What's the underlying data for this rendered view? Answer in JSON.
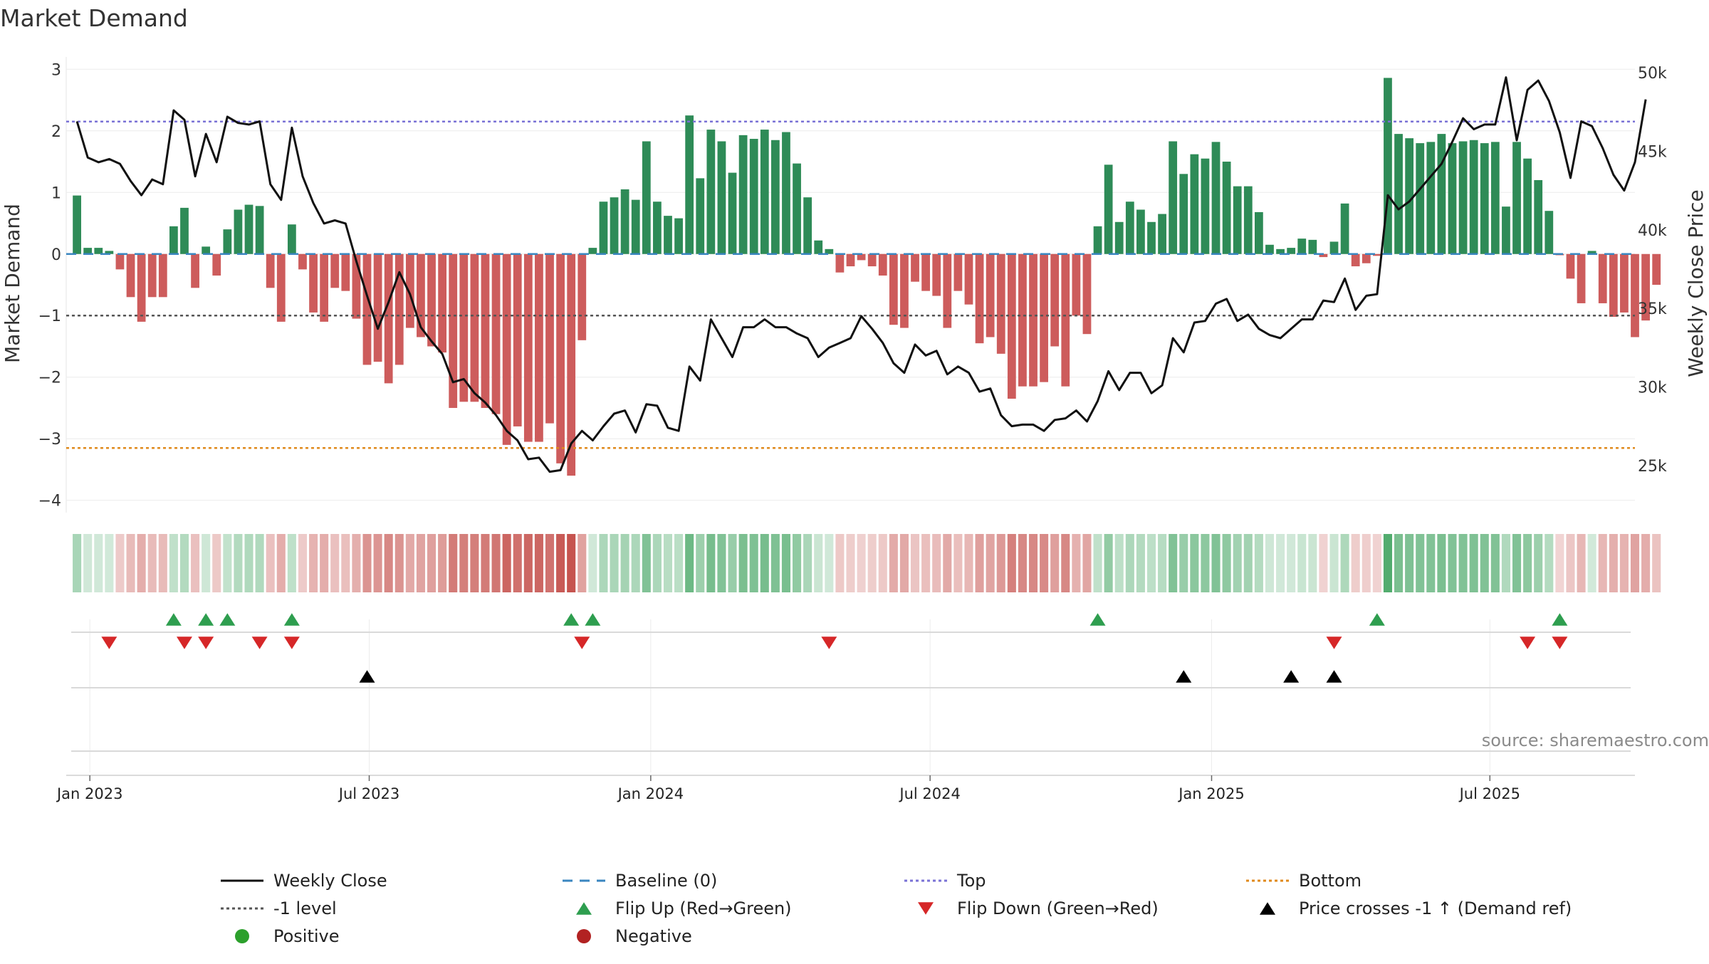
{
  "chart_data": {
    "type": "bar+line",
    "title": "Market Demand",
    "ylabel_left": "Market Demand",
    "ylabel_right": "Weekly Close Price",
    "ylim_left": [
      -4.2,
      3.2
    ],
    "ylim_right": [
      22000,
      51000
    ],
    "yticks_left": [
      -4,
      -3,
      -2,
      -1,
      0,
      1,
      2,
      3
    ],
    "yticks_left_labels": [
      "−4",
      "−3",
      "−2",
      "−1",
      "0",
      "1",
      "2",
      "3"
    ],
    "yticks_right": [
      25000,
      30000,
      35000,
      40000,
      45000,
      50000
    ],
    "yticks_right_labels": [
      "25k",
      "30k",
      "35k",
      "40k",
      "45k",
      "50k"
    ],
    "x_range_weeks": [
      -1,
      145
    ],
    "xticks": [
      {
        "label": "Jan 2023",
        "week": 1.2
      },
      {
        "label": "Jul 2023",
        "week": 27.2
      },
      {
        "label": "Jan 2024",
        "week": 53.4
      },
      {
        "label": "Jul 2024",
        "week": 79.4
      },
      {
        "label": "Jan 2025",
        "week": 105.6
      },
      {
        "label": "Jul 2025",
        "week": 131.5
      }
    ],
    "reference_levels": {
      "top": 2.15,
      "bottom": -3.15,
      "minus_one": -1,
      "baseline": 0
    },
    "demand": [
      0.95,
      0.1,
      0.1,
      0.05,
      -0.25,
      -0.7,
      -1.1,
      -0.7,
      -0.7,
      0.45,
      0.75,
      -0.55,
      0.12,
      -0.35,
      0.4,
      0.72,
      0.8,
      0.78,
      -0.55,
      -1.1,
      0.48,
      -0.25,
      -0.95,
      -1.1,
      -0.55,
      -0.6,
      -1.05,
      -1.8,
      -1.75,
      -2.1,
      -1.8,
      -1.2,
      -1.35,
      -1.5,
      -1.6,
      -2.5,
      -2.4,
      -2.4,
      -2.5,
      -2.6,
      -3.1,
      -2.8,
      -3.05,
      -3.05,
      -2.75,
      -3.4,
      -3.6,
      -1.4,
      0.1,
      0.85,
      0.92,
      1.05,
      0.88,
      1.83,
      0.85,
      0.62,
      0.58,
      2.25,
      1.23,
      2.02,
      1.83,
      1.32,
      1.93,
      1.87,
      2.02,
      1.85,
      1.98,
      1.47,
      0.92,
      0.22,
      0.08,
      -0.3,
      -0.2,
      -0.1,
      -0.2,
      -0.35,
      -1.15,
      -1.2,
      -0.45,
      -0.6,
      -0.68,
      -1.2,
      -0.6,
      -0.82,
      -1.45,
      -1.35,
      -1.62,
      -2.35,
      -2.15,
      -2.15,
      -2.08,
      -1.5,
      -2.15,
      -1.0,
      -1.3,
      0.45,
      1.45,
      0.52,
      0.85,
      0.72,
      0.52,
      0.65,
      1.83,
      1.3,
      1.62,
      1.55,
      1.82,
      1.5,
      1.1,
      1.1,
      0.68,
      0.15,
      0.08,
      0.1,
      0.25,
      0.23,
      -0.05,
      0.2,
      0.82,
      -0.2,
      -0.15,
      -0.03,
      2.86,
      1.95,
      1.88,
      1.8,
      1.82,
      1.95,
      1.8,
      1.83,
      1.85,
      1.8,
      1.82,
      0.77,
      1.82,
      1.55,
      1.2,
      0.7,
      -0.02,
      -0.4,
      -0.8,
      0.05,
      -0.8,
      -1.02,
      -0.95,
      -1.35,
      -1.08,
      -0.5
    ],
    "close_price": [
      46900,
      44600,
      44300,
      44500,
      44200,
      43100,
      42200,
      43200,
      42900,
      47600,
      47000,
      43400,
      46100,
      44300,
      47200,
      46800,
      46700,
      46900,
      42900,
      41900,
      46500,
      43400,
      41700,
      40400,
      40600,
      40400,
      38000,
      35800,
      33700,
      35400,
      37300,
      35900,
      33800,
      32900,
      32100,
      30300,
      30500,
      29600,
      29000,
      28200,
      27200,
      26600,
      25400,
      25500,
      24600,
      24700,
      26400,
      27200,
      26600,
      27500,
      28300,
      28500,
      27100,
      28900,
      28800,
      27400,
      27200,
      31300,
      30400,
      34300,
      33100,
      31900,
      33800,
      33800,
      34300,
      33800,
      33800,
      33400,
      33100,
      31900,
      32500,
      32800,
      33100,
      34500,
      33700,
      32800,
      31500,
      30900,
      32700,
      32000,
      32300,
      30800,
      31300,
      30900,
      29700,
      29900,
      28200,
      27500,
      27600,
      27600,
      27200,
      27900,
      28000,
      28500,
      27800,
      29100,
      31000,
      29800,
      30900,
      30900,
      29600,
      30100,
      33100,
      32200,
      34100,
      34200,
      35300,
      35600,
      34200,
      34600,
      33700,
      33300,
      33100,
      33700,
      34300,
      34300,
      35500,
      35400,
      36900,
      34900,
      35800,
      35900,
      42200,
      41300,
      41800,
      42600,
      43400,
      44200,
      45600,
      47100,
      46400,
      46700,
      46700,
      49700,
      45700,
      48900,
      49500,
      48200,
      46200,
      43300,
      46900,
      46600,
      45200,
      43500,
      42500,
      44300,
      48300
    ],
    "flip_up": [
      9,
      12,
      14,
      20,
      46,
      48,
      95,
      121,
      138
    ],
    "flip_down": [
      3,
      10,
      12,
      17,
      20,
      47,
      70,
      117,
      135,
      138
    ],
    "price_cross": [
      27,
      103,
      113,
      117
    ],
    "legend": [
      {
        "label": "Weekly Close",
        "kind": "solid-line",
        "color": "#111111"
      },
      {
        "label": "Baseline (0)",
        "kind": "dash-line",
        "color": "#3a86c0"
      },
      {
        "label": "Top",
        "kind": "dot-line",
        "color": "#7a72d6"
      },
      {
        "label": "Bottom",
        "kind": "dot-line",
        "color": "#e08a1e"
      },
      {
        "label": "-1 level",
        "kind": "dot-line",
        "color": "#555555"
      },
      {
        "label": "Flip Up (Red→Green)",
        "kind": "triangle-up",
        "color": "#2e9e4f"
      },
      {
        "label": "Flip Down (Green→Red)",
        "kind": "triangle-down",
        "color": "#d62728"
      },
      {
        "label": "Price crosses -1 ↑ (Demand ref)",
        "kind": "triangle-up",
        "color": "#000000"
      },
      {
        "label": "Positive",
        "kind": "circle",
        "color": "#2ca02c"
      },
      {
        "label": "Negative",
        "kind": "circle",
        "color": "#b22222"
      }
    ],
    "source_note": "source: sharemaestro.com"
  },
  "colors": {
    "positive_bar": "#2e8b57",
    "negative_bar": "#cd5c5c",
    "price_line": "#111111",
    "top_line": "#7a72d6",
    "bottom_line": "#e08a1e",
    "minus_one_line": "#555555",
    "baseline": "#3a86c0",
    "flip_up": "#2e9e4f",
    "flip_down": "#d62728",
    "cross_marker": "#000000"
  }
}
